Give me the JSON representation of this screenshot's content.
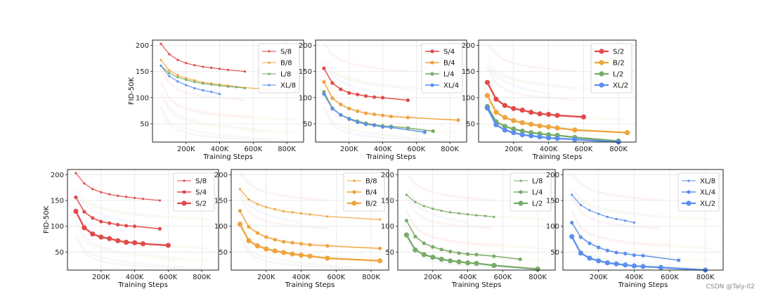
{
  "axis_text": {
    "xlabel": "Training Steps",
    "ylabel": "FID-50K",
    "xticks": [
      "200K",
      "400K",
      "600K",
      "800K"
    ],
    "yticks": [
      "50",
      "100",
      "150",
      "200"
    ]
  },
  "watermark": "CSDN @Taly-02",
  "colors": {
    "S": "#e24a4a",
    "B": "#f0a43c",
    "L": "#77ac68",
    "XL": "#5b8ff0"
  },
  "chart_data": [
    {
      "type": "line",
      "title": "",
      "xlabel": "Training Steps",
      "ylabel": "FID-50K",
      "xlim": [
        0,
        900
      ],
      "ylim": [
        15,
        210
      ],
      "grid": true,
      "legend": "top-right",
      "series": [
        {
          "name": "S/8",
          "color": "#e24a4a",
          "x": [
            50,
            100,
            150,
            200,
            250,
            300,
            350,
            400,
            450,
            550
          ],
          "y": [
            203,
            183,
            172,
            166,
            162,
            159,
            157,
            155,
            153,
            150
          ]
        },
        {
          "name": "B/8",
          "color": "#f0a43c",
          "x": [
            50,
            100,
            150,
            200,
            250,
            300,
            350,
            400,
            450,
            550,
            850
          ],
          "y": [
            172,
            152,
            143,
            137,
            133,
            129,
            127,
            125,
            123,
            119,
            113
          ]
        },
        {
          "name": "L/8",
          "color": "#77ac68",
          "x": [
            50,
            100,
            150,
            200,
            250,
            300,
            350,
            400,
            450,
            500,
            550
          ],
          "y": [
            161,
            147,
            139,
            134,
            130,
            127,
            125,
            123,
            121,
            120,
            118
          ]
        },
        {
          "name": "XL/8",
          "color": "#5b8ff0",
          "x": [
            50,
            100,
            150,
            200,
            250,
            300,
            350,
            400
          ],
          "y": [
            161,
            141,
            131,
            124,
            118,
            114,
            111,
            107
          ]
        }
      ]
    },
    {
      "type": "line",
      "title": "",
      "xlabel": "Training Steps",
      "ylabel": "",
      "xlim": [
        0,
        900
      ],
      "ylim": [
        15,
        210
      ],
      "grid": true,
      "legend": "top-right",
      "series": [
        {
          "name": "S/4",
          "color": "#e24a4a",
          "x": [
            50,
            100,
            150,
            200,
            250,
            300,
            350,
            400,
            550
          ],
          "y": [
            156,
            128,
            116,
            109,
            106,
            103,
            101,
            100,
            95
          ]
        },
        {
          "name": "B/4",
          "color": "#f0a43c",
          "x": [
            50,
            100,
            150,
            200,
            250,
            300,
            350,
            400,
            450,
            550,
            850
          ],
          "y": [
            130,
            99,
            87,
            79,
            74,
            70,
            68,
            66,
            64,
            62,
            57
          ]
        },
        {
          "name": "L/4",
          "color": "#77ac68",
          "x": [
            50,
            100,
            150,
            200,
            250,
            300,
            350,
            400,
            450,
            550,
            700
          ],
          "y": [
            111,
            80,
            67,
            60,
            55,
            51,
            48,
            46,
            45,
            42,
            36
          ]
        },
        {
          "name": "XL/4",
          "color": "#5b8ff0",
          "x": [
            50,
            100,
            150,
            200,
            250,
            300,
            350,
            400,
            450,
            650
          ],
          "y": [
            107,
            79,
            67,
            59,
            53,
            49,
            47,
            44,
            43,
            34
          ]
        }
      ]
    },
    {
      "type": "line",
      "title": "",
      "xlabel": "Training Steps",
      "ylabel": "",
      "xlim": [
        0,
        900
      ],
      "ylim": [
        15,
        210
      ],
      "grid": true,
      "legend": "top-right",
      "series": [
        {
          "name": "S/2",
          "color": "#e24a4a",
          "x": [
            50,
            100,
            150,
            200,
            250,
            300,
            350,
            400,
            450,
            600
          ],
          "y": [
            129,
            97,
            85,
            79,
            76,
            72,
            69,
            68,
            66,
            63
          ]
        },
        {
          "name": "B/2",
          "color": "#f0a43c",
          "x": [
            50,
            100,
            150,
            200,
            250,
            300,
            350,
            400,
            450,
            550,
            850
          ],
          "y": [
            104,
            72,
            62,
            56,
            52,
            49,
            46,
            44,
            42,
            38,
            33
          ]
        },
        {
          "name": "L/2",
          "color": "#77ac68",
          "x": [
            50,
            100,
            150,
            200,
            250,
            300,
            350,
            400,
            450,
            550,
            800
          ],
          "y": [
            83,
            54,
            45,
            40,
            36,
            33,
            31,
            29,
            28,
            24,
            17
          ]
        },
        {
          "name": "XL/2",
          "color": "#5b8ff0",
          "x": [
            50,
            100,
            150,
            200,
            250,
            300,
            350,
            400,
            450,
            550,
            800
          ],
          "y": [
            80,
            48,
            38,
            33,
            29,
            27,
            25,
            23,
            22,
            20,
            15
          ]
        }
      ]
    },
    {
      "type": "line",
      "title": "",
      "xlabel": "Training Steps",
      "ylabel": "FID-50K",
      "xlim": [
        0,
        900
      ],
      "ylim": [
        15,
        210
      ],
      "grid": true,
      "legend": "top-right",
      "series": [
        {
          "name": "S/8",
          "color": "#e24a4a",
          "x": [
            50,
            100,
            150,
            200,
            250,
            300,
            350,
            400,
            450,
            550
          ],
          "y": [
            203,
            183,
            172,
            166,
            162,
            159,
            157,
            155,
            153,
            150
          ]
        },
        {
          "name": "S/4",
          "color": "#e24a4a",
          "x": [
            50,
            100,
            150,
            200,
            250,
            300,
            350,
            400,
            550
          ],
          "y": [
            156,
            128,
            116,
            109,
            106,
            103,
            101,
            100,
            95
          ]
        },
        {
          "name": "S/2",
          "color": "#e24a4a",
          "x": [
            50,
            100,
            150,
            200,
            250,
            300,
            350,
            400,
            450,
            600
          ],
          "y": [
            129,
            97,
            85,
            79,
            76,
            72,
            69,
            68,
            66,
            63
          ]
        }
      ]
    },
    {
      "type": "line",
      "title": "",
      "xlabel": "Training Steps",
      "ylabel": "",
      "xlim": [
        0,
        900
      ],
      "ylim": [
        15,
        210
      ],
      "grid": true,
      "legend": "top-right",
      "series": [
        {
          "name": "B/8",
          "color": "#f0a43c",
          "x": [
            50,
            100,
            150,
            200,
            250,
            300,
            350,
            400,
            450,
            550,
            850
          ],
          "y": [
            172,
            152,
            143,
            137,
            133,
            129,
            127,
            125,
            123,
            119,
            113
          ]
        },
        {
          "name": "B/4",
          "color": "#f0a43c",
          "x": [
            50,
            100,
            150,
            200,
            250,
            300,
            350,
            400,
            450,
            550,
            850
          ],
          "y": [
            130,
            99,
            87,
            79,
            74,
            70,
            68,
            66,
            64,
            62,
            57
          ]
        },
        {
          "name": "B/2",
          "color": "#f0a43c",
          "x": [
            50,
            100,
            150,
            200,
            250,
            300,
            350,
            400,
            450,
            550,
            850
          ],
          "y": [
            104,
            72,
            62,
            56,
            52,
            49,
            46,
            44,
            42,
            38,
            33
          ]
        }
      ]
    },
    {
      "type": "line",
      "title": "",
      "xlabel": "Training Steps",
      "ylabel": "",
      "xlim": [
        0,
        900
      ],
      "ylim": [
        15,
        210
      ],
      "grid": true,
      "legend": "top-right",
      "series": [
        {
          "name": "L/8",
          "color": "#77ac68",
          "x": [
            50,
            100,
            150,
            200,
            250,
            300,
            350,
            400,
            450,
            500,
            550
          ],
          "y": [
            161,
            147,
            139,
            134,
            130,
            127,
            125,
            123,
            121,
            120,
            118
          ]
        },
        {
          "name": "L/4",
          "color": "#77ac68",
          "x": [
            50,
            100,
            150,
            200,
            250,
            300,
            350,
            400,
            450,
            550,
            700
          ],
          "y": [
            111,
            80,
            67,
            60,
            55,
            51,
            48,
            46,
            45,
            42,
            36
          ]
        },
        {
          "name": "L/2",
          "color": "#77ac68",
          "x": [
            50,
            100,
            150,
            200,
            250,
            300,
            350,
            400,
            450,
            550,
            800
          ],
          "y": [
            83,
            54,
            45,
            40,
            36,
            33,
            31,
            29,
            28,
            24,
            17
          ]
        }
      ]
    },
    {
      "type": "line",
      "title": "",
      "xlabel": "Training Steps",
      "ylabel": "",
      "xlim": [
        0,
        900
      ],
      "ylim": [
        15,
        210
      ],
      "grid": true,
      "legend": "top-right",
      "series": [
        {
          "name": "XL/8",
          "color": "#5b8ff0",
          "x": [
            50,
            100,
            150,
            200,
            250,
            300,
            350,
            400
          ],
          "y": [
            161,
            141,
            131,
            124,
            118,
            114,
            111,
            107
          ]
        },
        {
          "name": "XL/4",
          "color": "#5b8ff0",
          "x": [
            50,
            100,
            150,
            200,
            250,
            300,
            350,
            400,
            450,
            650
          ],
          "y": [
            107,
            79,
            67,
            59,
            53,
            49,
            47,
            44,
            43,
            34
          ]
        },
        {
          "name": "XL/2",
          "color": "#5b8ff0",
          "x": [
            50,
            100,
            150,
            200,
            250,
            300,
            350,
            400,
            450,
            550,
            800
          ],
          "y": [
            80,
            48,
            38,
            33,
            29,
            27,
            25,
            23,
            22,
            20,
            15
          ]
        }
      ]
    }
  ]
}
